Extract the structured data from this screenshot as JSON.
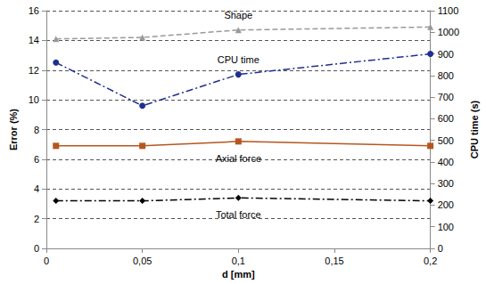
{
  "chart_data": {
    "type": "line",
    "x_label": "d [mm]",
    "y_label": "Error (%)",
    "y2_label": "CPU time (s)",
    "x": [
      0.005,
      0.05,
      0.1,
      0.2
    ],
    "xlim": [
      0,
      0.2
    ],
    "xticks": [
      0,
      {
        "value": 0.05,
        "label": "0,05"
      },
      {
        "value": 0.1,
        "label": "0,1"
      },
      {
        "value": 0.15,
        "label": "0,15"
      },
      {
        "value": 0.2,
        "label": "0,2"
      }
    ],
    "ylim": [
      0,
      16
    ],
    "yticks": [
      0,
      2,
      4,
      6,
      8,
      10,
      12,
      14,
      16
    ],
    "y2lim": [
      0,
      1100
    ],
    "y2ticks": [
      0,
      100,
      200,
      300,
      400,
      500,
      600,
      700,
      800,
      900,
      1000,
      1100
    ],
    "grid": true,
    "series": [
      {
        "name": "Shape",
        "color": "#999999",
        "marker": "triangle",
        "line_style": "dashed",
        "values": [
          14.1,
          14.2,
          14.7,
          14.9
        ]
      },
      {
        "name": "CPU time",
        "color": "#1f2f8f",
        "marker": "circle",
        "line_style": "dashdot",
        "axis": "y2",
        "values": [
          860,
          660,
          805,
          900
        ]
      },
      {
        "name": "Axial force",
        "color": "#b5561e",
        "marker": "square",
        "line_style": "solid",
        "values": [
          6.9,
          6.9,
          7.2,
          6.9
        ]
      },
      {
        "name": "Total force",
        "color": "#000000",
        "marker": "diamond",
        "line_style": "dashdot",
        "values": [
          3.2,
          3.2,
          3.4,
          3.2
        ]
      }
    ]
  }
}
